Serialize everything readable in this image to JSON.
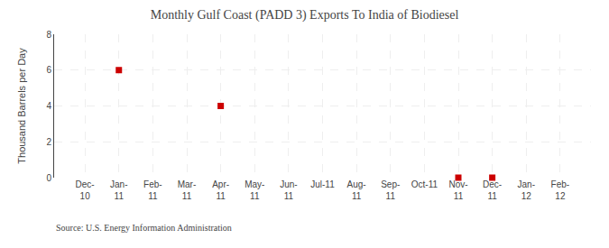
{
  "chart_data": {
    "type": "scatter",
    "title": "Monthly Gulf Coast (PADD 3) Exports To India of Biodiesel",
    "ylabel": "Thousand Barrels per Day",
    "source": "Source: U.S. Energy Information Administration",
    "categories": [
      "Dec-\n10",
      "Jan-\n11",
      "Feb-\n11",
      "Mar-\n11",
      "Apr-\n11",
      "May-\n11",
      "Jun-\n11",
      "Jul-11",
      "Aug-\n11",
      "Sep-\n11",
      "Oct-11",
      "Nov-\n11",
      "Dec-\n11",
      "Jan-\n12",
      "Feb-\n12"
    ],
    "values": [
      null,
      6,
      null,
      null,
      4,
      null,
      null,
      null,
      null,
      null,
      null,
      0,
      0,
      null,
      null
    ],
    "color": "#cc0000",
    "marker": "square",
    "ylim": [
      0,
      8
    ],
    "yticks": [
      0,
      2,
      4,
      6,
      8
    ],
    "grid": true
  }
}
